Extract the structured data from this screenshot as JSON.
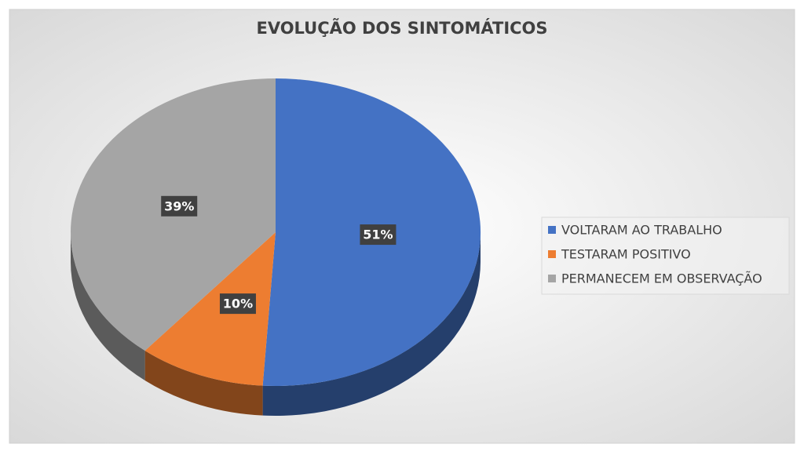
{
  "chart_data": {
    "type": "pie",
    "title": "EVOLUÇÃO DOS SINTOMÁTICOS",
    "categories": [
      "VOLTARAM AO TRABALHO",
      "TESTARAM POSITIVO",
      "PERMANECEM EM OBSERVAÇÃO"
    ],
    "values": [
      51,
      10,
      39
    ],
    "value_labels": [
      "51%",
      "10%",
      "39%"
    ],
    "colors": [
      "#4472c4",
      "#ed7d31",
      "#a5a5a5"
    ],
    "legend": "right"
  }
}
